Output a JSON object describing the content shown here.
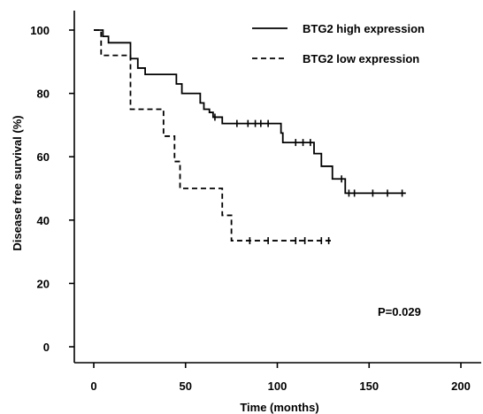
{
  "chart_data": {
    "type": "line",
    "xlabel": "Time (months)",
    "ylabel": "Disease free survival (%)",
    "xlim": [
      0,
      200
    ],
    "ylim": [
      0,
      100
    ],
    "xticks": [
      0,
      50,
      100,
      150,
      200
    ],
    "yticks": [
      0,
      20,
      40,
      60,
      80,
      100
    ],
    "grid": false,
    "legend_position": "top-right",
    "annotation": "P=0.029",
    "series": [
      {
        "name": "BTG2 high expression",
        "line_style": "solid",
        "color": "#000000",
        "steps": [
          [
            0,
            100
          ],
          [
            5,
            98
          ],
          [
            8,
            96
          ],
          [
            20,
            91
          ],
          [
            24,
            88
          ],
          [
            28,
            86
          ],
          [
            45,
            83
          ],
          [
            48,
            80
          ],
          [
            58,
            77
          ],
          [
            60,
            75
          ],
          [
            63,
            74
          ],
          [
            65,
            72.5
          ],
          [
            70,
            70.5
          ],
          [
            102,
            67.5
          ],
          [
            103,
            64.5
          ],
          [
            120,
            61
          ],
          [
            124,
            57
          ],
          [
            130,
            53
          ],
          [
            137,
            48.5
          ],
          [
            170,
            48.5
          ]
        ],
        "censored": [
          66,
          78,
          84,
          88,
          91,
          95,
          110,
          114,
          118,
          135,
          139,
          142,
          152,
          160,
          168
        ]
      },
      {
        "name": "BTG2 low expression",
        "line_style": "dashed",
        "color": "#000000",
        "steps": [
          [
            0,
            100
          ],
          [
            4,
            92
          ],
          [
            20,
            75
          ],
          [
            38,
            66.5
          ],
          [
            44,
            58.5
          ],
          [
            47,
            50
          ],
          [
            70,
            41.5
          ],
          [
            75,
            33.5
          ],
          [
            130,
            33.5
          ]
        ],
        "censored": [
          85,
          95,
          110,
          115,
          124,
          128
        ]
      }
    ]
  }
}
